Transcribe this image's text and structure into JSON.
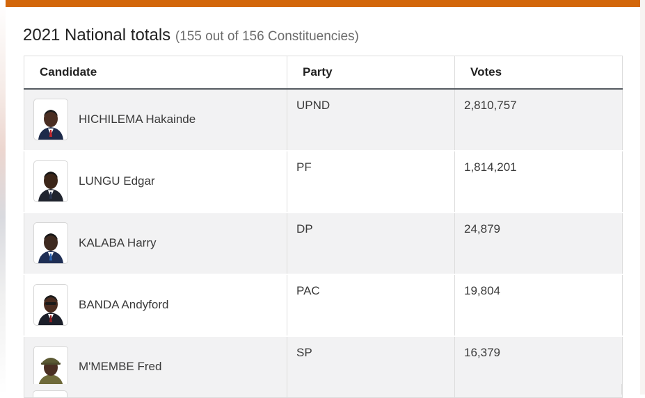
{
  "header": {
    "title": "2021 National totals",
    "subtitle": "(155 out of 156 Constituencies)"
  },
  "table": {
    "columns": [
      "Candidate",
      "Party",
      "Votes"
    ],
    "rows": [
      {
        "candidate": "HICHILEMA Hakainde",
        "party": "UPND",
        "votes": "2,810,757"
      },
      {
        "candidate": "LUNGU Edgar",
        "party": "PF",
        "votes": "1,814,201"
      },
      {
        "candidate": "KALABA Harry",
        "party": "DP",
        "votes": "24,879"
      },
      {
        "candidate": "BANDA Andyford",
        "party": "PAC",
        "votes": "19,804"
      },
      {
        "candidate": "M'MEMBE Fred",
        "party": "SP",
        "votes": "16,379"
      }
    ]
  },
  "colors": {
    "accent_bar": "#d2660a",
    "row_alt": "#f2f2f3",
    "header_rule": "#555a60"
  },
  "icons": {
    "avatar": "candidate-portrait-icon"
  }
}
